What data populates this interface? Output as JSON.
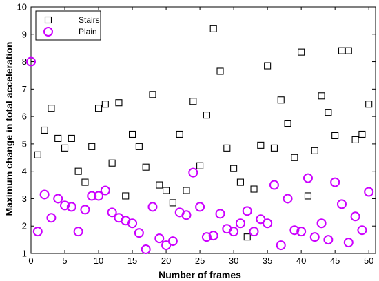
{
  "chart_data": {
    "type": "scatter",
    "xlabel": "Number of frames",
    "ylabel": "Maximum change in total acceleration",
    "xlim": [
      0,
      51
    ],
    "ylim": [
      1,
      10
    ],
    "xticks": [
      0,
      5,
      10,
      15,
      20,
      25,
      30,
      35,
      40,
      45,
      50
    ],
    "yticks": [
      1,
      2,
      3,
      4,
      5,
      6,
      7,
      8,
      9,
      10
    ],
    "legend_position": "top-left",
    "series": [
      {
        "name": "Stairs",
        "marker": "square",
        "color": "#000000",
        "points": [
          [
            1,
            4.6
          ],
          [
            2,
            5.5
          ],
          [
            3,
            6.3
          ],
          [
            4,
            5.2
          ],
          [
            5,
            4.85
          ],
          [
            6,
            5.2
          ],
          [
            7,
            4.0
          ],
          [
            8,
            3.6
          ],
          [
            9,
            4.9
          ],
          [
            10,
            6.3
          ],
          [
            11,
            6.45
          ],
          [
            12,
            4.3
          ],
          [
            13,
            6.5
          ],
          [
            14,
            3.1
          ],
          [
            15,
            5.35
          ],
          [
            16,
            4.9
          ],
          [
            17,
            4.15
          ],
          [
            18,
            6.8
          ],
          [
            19,
            3.5
          ],
          [
            20,
            3.3
          ],
          [
            21,
            2.85
          ],
          [
            22,
            5.35
          ],
          [
            23,
            3.3
          ],
          [
            24,
            6.55
          ],
          [
            25,
            4.2
          ],
          [
            26,
            6.05
          ],
          [
            27,
            9.2
          ],
          [
            28,
            7.65
          ],
          [
            29,
            4.85
          ],
          [
            30,
            4.1
          ],
          [
            31,
            3.6
          ],
          [
            32,
            1.6
          ],
          [
            33,
            3.35
          ],
          [
            34,
            4.95
          ],
          [
            35,
            7.85
          ],
          [
            36,
            4.85
          ],
          [
            37,
            6.6
          ],
          [
            38,
            5.75
          ],
          [
            39,
            4.5
          ],
          [
            40,
            8.35
          ],
          [
            41,
            3.1
          ],
          [
            42,
            4.75
          ],
          [
            43,
            6.75
          ],
          [
            44,
            6.15
          ],
          [
            45,
            5.3
          ],
          [
            46,
            8.4
          ],
          [
            47,
            8.4
          ],
          [
            48,
            5.15
          ],
          [
            49,
            5.35
          ],
          [
            50,
            6.45
          ]
        ]
      },
      {
        "name": "Plain",
        "marker": "circle",
        "color": "#cc00ff",
        "points": [
          [
            0,
            8.0
          ],
          [
            1,
            1.8
          ],
          [
            2,
            3.15
          ],
          [
            3,
            2.3
          ],
          [
            4,
            3.0
          ],
          [
            5,
            2.75
          ],
          [
            6,
            2.7
          ],
          [
            7,
            1.8
          ],
          [
            8,
            2.6
          ],
          [
            9,
            3.1
          ],
          [
            10,
            3.1
          ],
          [
            11,
            3.3
          ],
          [
            12,
            2.5
          ],
          [
            13,
            2.3
          ],
          [
            14,
            2.2
          ],
          [
            15,
            2.1
          ],
          [
            16,
            1.75
          ],
          [
            17,
            1.15
          ],
          [
            18,
            2.7
          ],
          [
            19,
            1.55
          ],
          [
            20,
            1.3
          ],
          [
            21,
            1.45
          ],
          [
            22,
            2.5
          ],
          [
            23,
            2.4
          ],
          [
            24,
            3.95
          ],
          [
            25,
            2.7
          ],
          [
            26,
            1.6
          ],
          [
            27,
            1.65
          ],
          [
            28,
            2.45
          ],
          [
            29,
            1.9
          ],
          [
            30,
            1.8
          ],
          [
            31,
            2.1
          ],
          [
            32,
            2.55
          ],
          [
            33,
            1.8
          ],
          [
            34,
            2.25
          ],
          [
            35,
            2.1
          ],
          [
            36,
            3.5
          ],
          [
            37,
            1.3
          ],
          [
            38,
            3.0
          ],
          [
            39,
            1.85
          ],
          [
            40,
            1.8
          ],
          [
            41,
            3.75
          ],
          [
            42,
            1.6
          ],
          [
            43,
            2.1
          ],
          [
            44,
            1.5
          ],
          [
            45,
            3.6
          ],
          [
            46,
            2.8
          ],
          [
            47,
            1.4
          ],
          [
            48,
            2.35
          ],
          [
            49,
            1.85
          ],
          [
            50,
            3.25
          ]
        ]
      }
    ]
  }
}
